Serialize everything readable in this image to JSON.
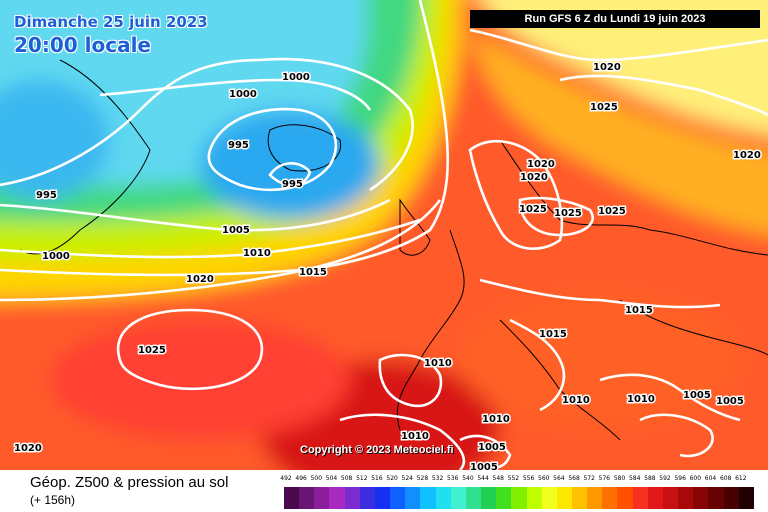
{
  "header": {
    "date": "Dimanche 25 juin 2023",
    "local_time": "20:00 locale",
    "run_info": "Run GFS 6 Z du Lundi 19 juin 2023"
  },
  "copyright": "Copyright © 2023 Meteociel.fi",
  "footer": {
    "title": "Géop. Z500 & pression au sol",
    "subtitle": "(+ 156h)"
  },
  "legend": {
    "labels": [
      "492",
      "496",
      "500",
      "504",
      "508",
      "512",
      "516",
      "520",
      "524",
      "528",
      "532",
      "536",
      "540",
      "544",
      "548",
      "552",
      "556",
      "560",
      "564",
      "568",
      "572",
      "576",
      "580",
      "584",
      "588",
      "592",
      "596",
      "600",
      "604",
      "608",
      "612"
    ],
    "colors": [
      "#4b0a4f",
      "#6a1474",
      "#8a1e9b",
      "#a82ac0",
      "#7a2cd0",
      "#3a2ee0",
      "#1530f0",
      "#1060ff",
      "#1090ff",
      "#10c0ff",
      "#20e0f0",
      "#40f0d0",
      "#30e090",
      "#20d050",
      "#40e020",
      "#80f000",
      "#c0ff00",
      "#f0ff20",
      "#ffe800",
      "#ffc000",
      "#ff9800",
      "#ff7000",
      "#ff5000",
      "#f83020",
      "#e01818",
      "#c81010",
      "#a80808",
      "#880404",
      "#680202",
      "#480000",
      "#200000"
    ]
  },
  "isobars": {
    "labels": [
      "1000",
      "1000",
      "995",
      "995",
      "995",
      "1000",
      "1005",
      "1010",
      "1020",
      "1015",
      "1025",
      "1020",
      "1020",
      "1025",
      "1020",
      "1020",
      "1025",
      "1025",
      "1025",
      "1015",
      "1015",
      "1010",
      "1010",
      "1010",
      "1005",
      "1005",
      "1010",
      "1010",
      "1005",
      "1005",
      "1020"
    ]
  },
  "colors": {
    "background_warm": "#ff5a2a",
    "background_cold": "#5ed8f0",
    "isobar": "#ffffff",
    "coast": "#000000"
  }
}
